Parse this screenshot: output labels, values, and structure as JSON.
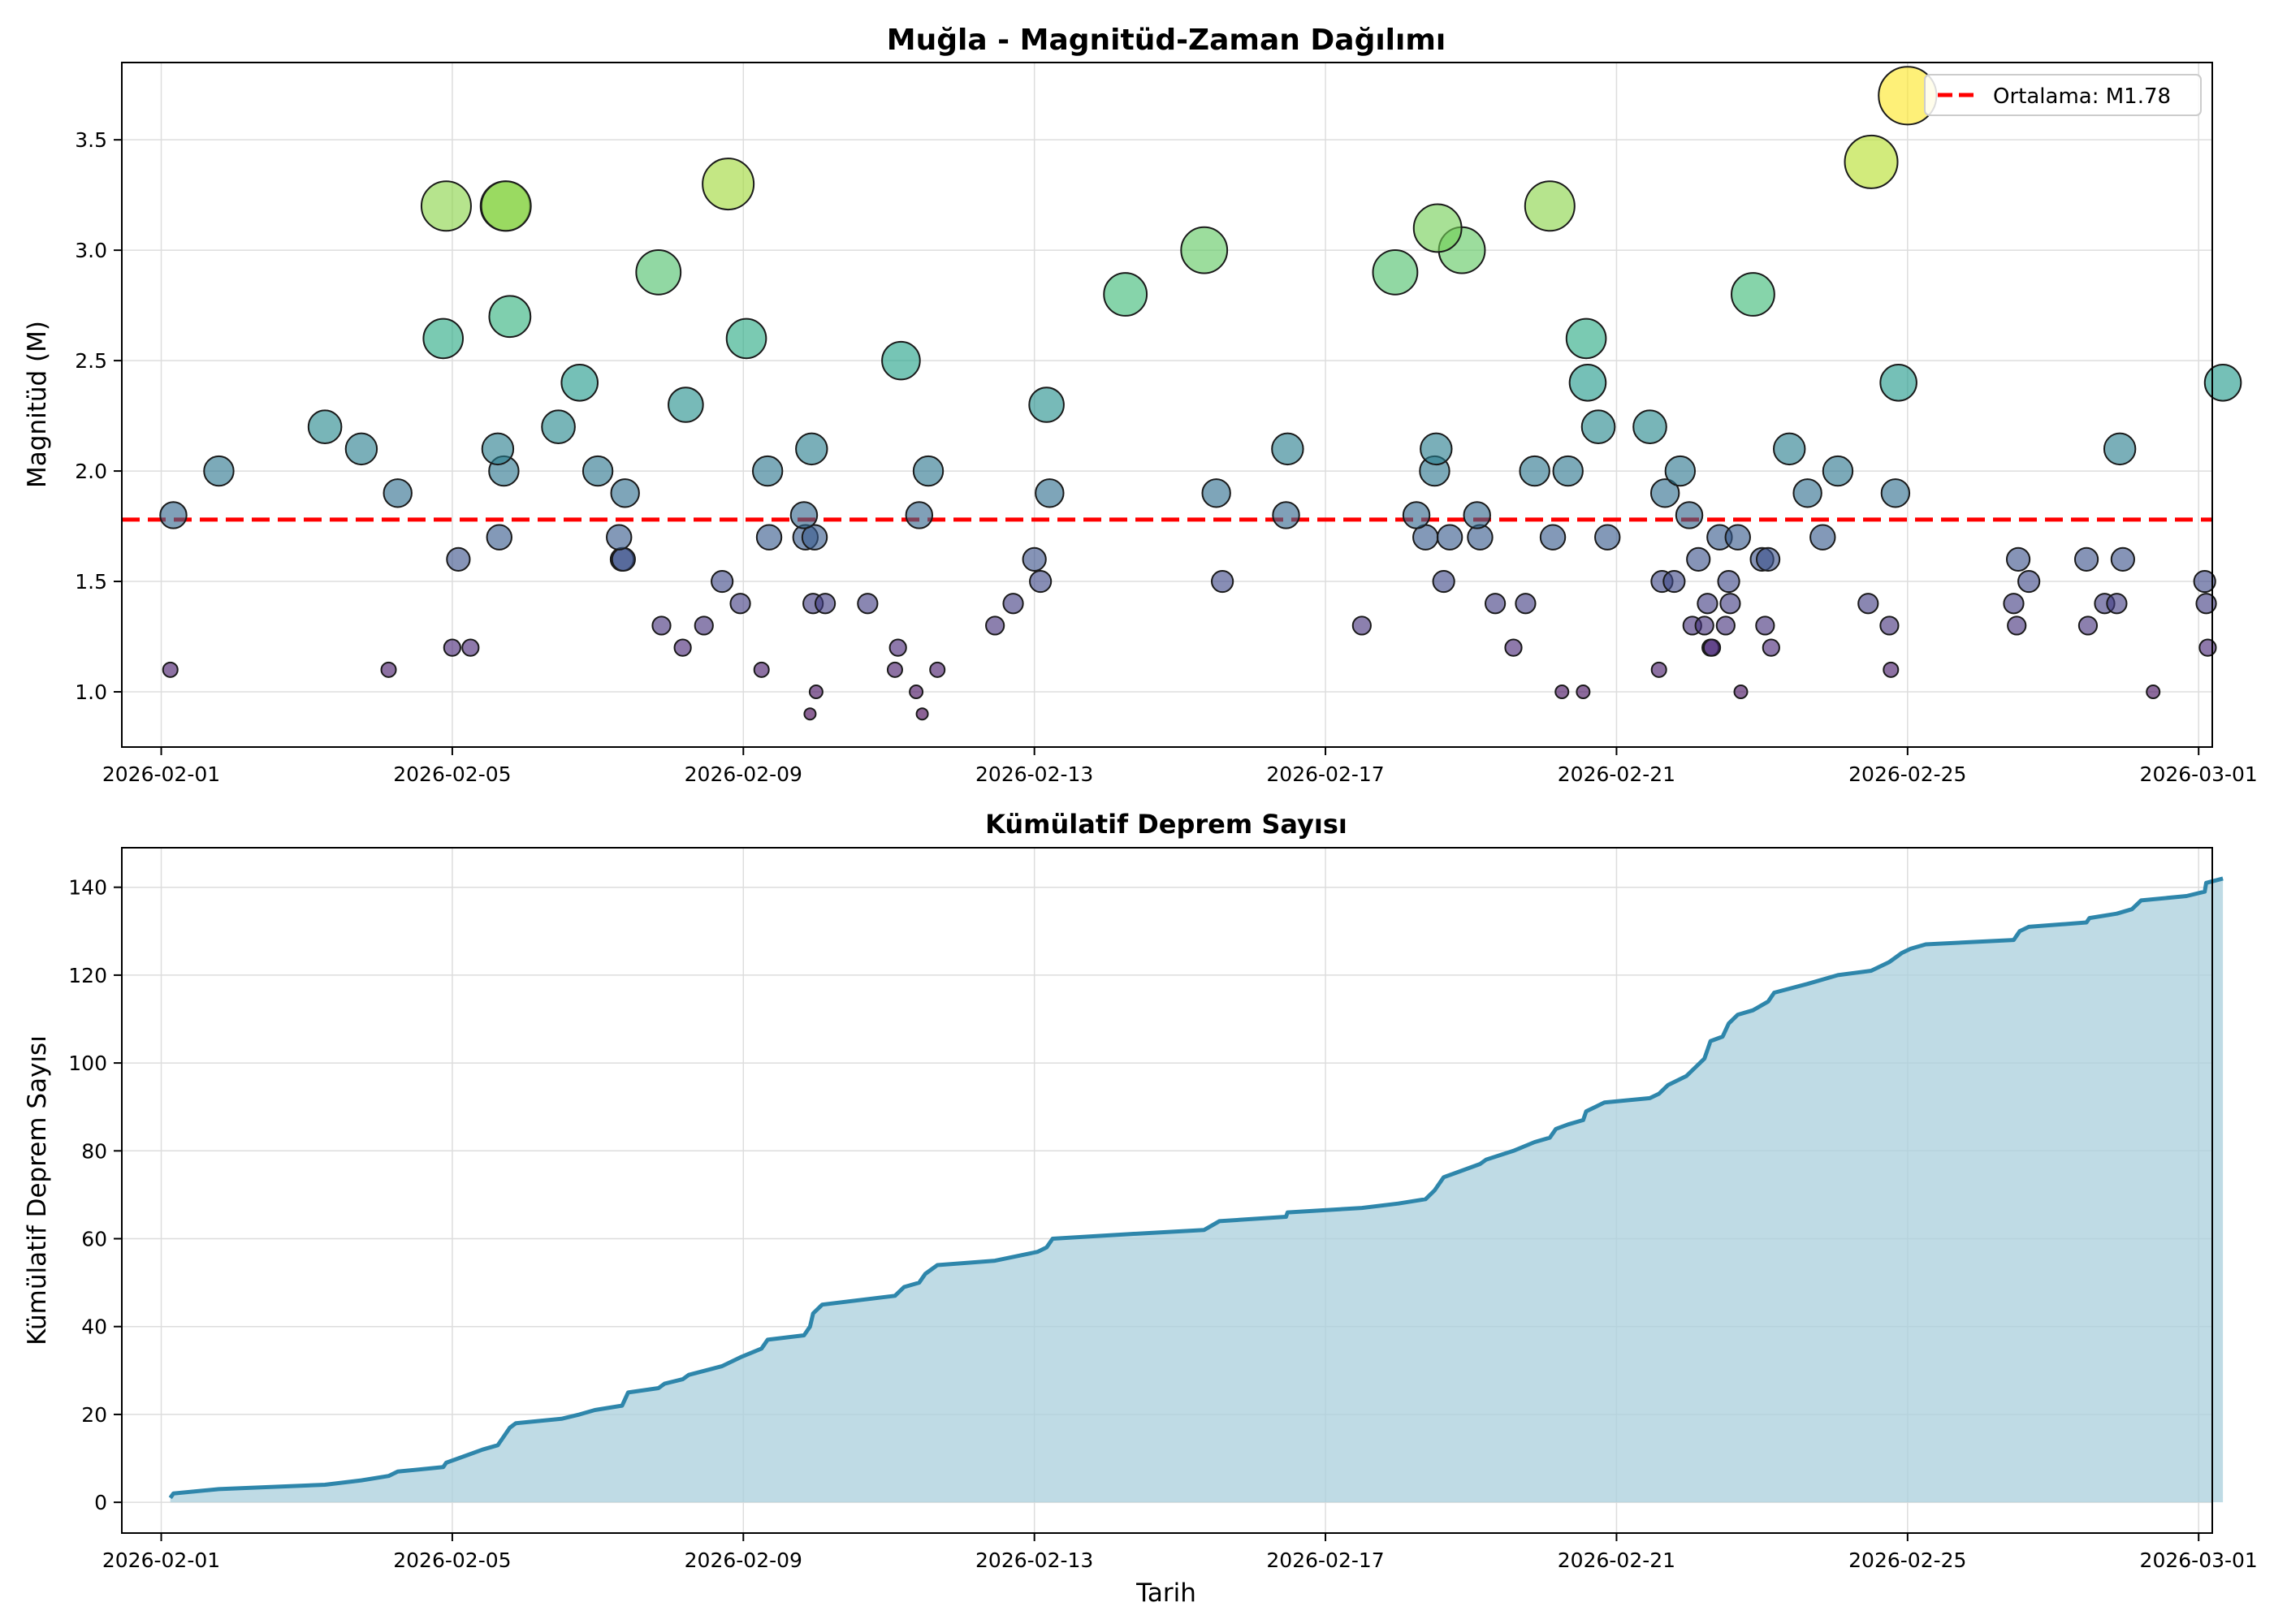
{
  "chart_data": [
    {
      "type": "scatter",
      "title": "Muğla - Magnitüd-Zaman Dağılımı",
      "xlabel": "",
      "ylabel": "Magnitüd (M)",
      "x_tick_labels": [
        "2026-02-01",
        "2026-02-05",
        "2026-02-09",
        "2026-02-13",
        "2026-02-17",
        "2026-02-21",
        "2026-02-25",
        "2026-03-01"
      ],
      "y_tick_labels": [
        "1.0",
        "1.5",
        "2.0",
        "2.5",
        "3.0",
        "3.5"
      ],
      "xlim": [
        "2026-01-31T11:00",
        "2026-03-01T04:30"
      ],
      "ylim": [
        0.75,
        3.85
      ],
      "grid": true,
      "legend_position": "top-right",
      "mean_line": {
        "value": 1.78,
        "label": "Ortalama: M1.78",
        "color": "#ff0000"
      },
      "color_scale": "viridis",
      "color_range": [
        0.9,
        3.7
      ],
      "points": [
        {
          "t": "2026-02-01T03:00",
          "m": 1.1
        },
        {
          "t": "2026-02-01T04:00",
          "m": 1.8
        },
        {
          "t": "2026-02-01T19:00",
          "m": 2.0
        },
        {
          "t": "2026-02-03T06:00",
          "m": 2.2
        },
        {
          "t": "2026-02-03T18:00",
          "m": 2.1
        },
        {
          "t": "2026-02-04T03:00",
          "m": 1.1
        },
        {
          "t": "2026-02-04T06:00",
          "m": 1.9
        },
        {
          "t": "2026-02-04T21:00",
          "m": 2.6
        },
        {
          "t": "2026-02-04T22:00",
          "m": 3.2
        },
        {
          "t": "2026-02-04T23:59",
          "m": 1.2
        },
        {
          "t": "2026-02-05T02:00",
          "m": 1.6
        },
        {
          "t": "2026-02-05T06:00",
          "m": 1.2
        },
        {
          "t": "2026-02-05T15:00",
          "m": 2.1
        },
        {
          "t": "2026-02-05T15:30",
          "m": 1.7
        },
        {
          "t": "2026-02-05T17:00",
          "m": 2.0
        },
        {
          "t": "2026-02-05T17:30",
          "m": 3.2
        },
        {
          "t": "2026-02-05T17:45",
          "m": 3.2
        },
        {
          "t": "2026-02-05T19:00",
          "m": 2.7
        },
        {
          "t": "2026-02-06T11:00",
          "m": 2.2
        },
        {
          "t": "2026-02-06T18:00",
          "m": 2.4
        },
        {
          "t": "2026-02-07T00:00",
          "m": 2.0
        },
        {
          "t": "2026-02-07T07:00",
          "m": 1.7
        },
        {
          "t": "2026-02-07T08:00",
          "m": 1.6
        },
        {
          "t": "2026-02-07T08:30",
          "m": 1.6
        },
        {
          "t": "2026-02-07T09:00",
          "m": 1.9
        },
        {
          "t": "2026-02-07T20:00",
          "m": 2.9
        },
        {
          "t": "2026-02-07T21:00",
          "m": 1.3
        },
        {
          "t": "2026-02-08T04:00",
          "m": 1.2
        },
        {
          "t": "2026-02-08T05:00",
          "m": 2.3
        },
        {
          "t": "2026-02-08T11:00",
          "m": 1.3
        },
        {
          "t": "2026-02-08T17:00",
          "m": 1.5
        },
        {
          "t": "2026-02-08T19:00",
          "m": 3.3
        },
        {
          "t": "2026-02-08T23:00",
          "m": 1.4
        },
        {
          "t": "2026-02-09T01:00",
          "m": 2.6
        },
        {
          "t": "2026-02-09T06:00",
          "m": 1.1
        },
        {
          "t": "2026-02-09T08:00",
          "m": 2.0
        },
        {
          "t": "2026-02-09T08:30",
          "m": 1.7
        },
        {
          "t": "2026-02-09T20:00",
          "m": 1.8
        },
        {
          "t": "2026-02-09T20:30",
          "m": 1.7
        },
        {
          "t": "2026-02-09T22:00",
          "m": 0.9
        },
        {
          "t": "2026-02-09T22:30",
          "m": 2.1
        },
        {
          "t": "2026-02-09T23:00",
          "m": 1.4
        },
        {
          "t": "2026-02-09T23:30",
          "m": 1.7
        },
        {
          "t": "2026-02-10T00:00",
          "m": 1.0
        },
        {
          "t": "2026-02-10T03:00",
          "m": 1.4
        },
        {
          "t": "2026-02-10T17:00",
          "m": 1.4
        },
        {
          "t": "2026-02-11T02:00",
          "m": 1.1
        },
        {
          "t": "2026-02-11T03:00",
          "m": 1.2
        },
        {
          "t": "2026-02-11T04:00",
          "m": 2.5
        },
        {
          "t": "2026-02-11T09:00",
          "m": 1.0
        },
        {
          "t": "2026-02-11T10:00",
          "m": 1.8
        },
        {
          "t": "2026-02-11T11:00",
          "m": 0.9
        },
        {
          "t": "2026-02-11T13:00",
          "m": 2.0
        },
        {
          "t": "2026-02-11T16:00",
          "m": 1.1
        },
        {
          "t": "2026-02-12T11:00",
          "m": 1.3
        },
        {
          "t": "2026-02-12T17:00",
          "m": 1.4
        },
        {
          "t": "2026-02-13T00:00",
          "m": 1.6
        },
        {
          "t": "2026-02-13T02:00",
          "m": 1.5
        },
        {
          "t": "2026-02-13T04:00",
          "m": 2.3
        },
        {
          "t": "2026-02-13T05:00",
          "m": 1.9
        },
        {
          "t": "2026-02-14T06:00",
          "m": 2.8
        },
        {
          "t": "2026-02-15T08:00",
          "m": 3.0
        },
        {
          "t": "2026-02-15T12:00",
          "m": 1.9
        },
        {
          "t": "2026-02-15T14:00",
          "m": 1.5
        },
        {
          "t": "2026-02-16T11:00",
          "m": 1.8
        },
        {
          "t": "2026-02-16T11:30",
          "m": 2.1
        },
        {
          "t": "2026-02-17T12:00",
          "m": 1.3
        },
        {
          "t": "2026-02-17T23:00",
          "m": 2.9
        },
        {
          "t": "2026-02-18T06:00",
          "m": 1.8
        },
        {
          "t": "2026-02-18T09:00",
          "m": 1.7
        },
        {
          "t": "2026-02-18T12:00",
          "m": 2.0
        },
        {
          "t": "2026-02-18T12:30",
          "m": 2.1
        },
        {
          "t": "2026-02-18T13:00",
          "m": 3.1
        },
        {
          "t": "2026-02-18T15:00",
          "m": 1.5
        },
        {
          "t": "2026-02-18T17:00",
          "m": 1.7
        },
        {
          "t": "2026-02-18T21:00",
          "m": 3.0
        },
        {
          "t": "2026-02-19T02:00",
          "m": 1.8
        },
        {
          "t": "2026-02-19T03:00",
          "m": 1.7
        },
        {
          "t": "2026-02-19T08:00",
          "m": 1.4
        },
        {
          "t": "2026-02-19T14:00",
          "m": 1.2
        },
        {
          "t": "2026-02-19T18:00",
          "m": 1.4
        },
        {
          "t": "2026-02-19T21:00",
          "m": 2.0
        },
        {
          "t": "2026-02-20T02:00",
          "m": 3.2
        },
        {
          "t": "2026-02-20T03:00",
          "m": 1.7
        },
        {
          "t": "2026-02-20T06:00",
          "m": 1.0
        },
        {
          "t": "2026-02-20T08:00",
          "m": 2.0
        },
        {
          "t": "2026-02-20T13:00",
          "m": 1.0
        },
        {
          "t": "2026-02-20T14:00",
          "m": 2.6
        },
        {
          "t": "2026-02-20T14:30",
          "m": 2.4
        },
        {
          "t": "2026-02-20T18:00",
          "m": 2.2
        },
        {
          "t": "2026-02-20T21:00",
          "m": 1.7
        },
        {
          "t": "2026-02-21T11:00",
          "m": 2.2
        },
        {
          "t": "2026-02-21T14:00",
          "m": 1.1
        },
        {
          "t": "2026-02-21T15:00",
          "m": 1.5
        },
        {
          "t": "2026-02-21T16:00",
          "m": 1.9
        },
        {
          "t": "2026-02-21T19:00",
          "m": 1.5
        },
        {
          "t": "2026-02-21T21:00",
          "m": 2.0
        },
        {
          "t": "2026-02-22T00:00",
          "m": 1.8
        },
        {
          "t": "2026-02-22T01:00",
          "m": 1.3
        },
        {
          "t": "2026-02-22T03:00",
          "m": 1.6
        },
        {
          "t": "2026-02-22T05:00",
          "m": 1.3
        },
        {
          "t": "2026-02-22T06:00",
          "m": 1.4
        },
        {
          "t": "2026-02-22T07:00",
          "m": 1.2
        },
        {
          "t": "2026-02-22T07:30",
          "m": 1.2
        },
        {
          "t": "2026-02-22T10:00",
          "m": 1.7
        },
        {
          "t": "2026-02-22T12:00",
          "m": 1.3
        },
        {
          "t": "2026-02-22T13:00",
          "m": 1.5
        },
        {
          "t": "2026-02-22T13:30",
          "m": 1.4
        },
        {
          "t": "2026-02-22T16:00",
          "m": 1.7
        },
        {
          "t": "2026-02-22T17:00",
          "m": 1.0
        },
        {
          "t": "2026-02-22T21:00",
          "m": 2.8
        },
        {
          "t": "2026-02-23T00:00",
          "m": 1.6
        },
        {
          "t": "2026-02-23T01:00",
          "m": 1.3
        },
        {
          "t": "2026-02-23T02:00",
          "m": 1.6
        },
        {
          "t": "2026-02-23T03:00",
          "m": 1.2
        },
        {
          "t": "2026-02-23T09:00",
          "m": 2.1
        },
        {
          "t": "2026-02-23T15:00",
          "m": 1.9
        },
        {
          "t": "2026-02-23T20:00",
          "m": 1.7
        },
        {
          "t": "2026-02-24T01:00",
          "m": 2.0
        },
        {
          "t": "2026-02-24T11:00",
          "m": 1.4
        },
        {
          "t": "2026-02-24T12:00",
          "m": 3.4
        },
        {
          "t": "2026-02-24T18:00",
          "m": 1.3
        },
        {
          "t": "2026-02-24T18:30",
          "m": 1.1
        },
        {
          "t": "2026-02-24T20:00",
          "m": 1.9
        },
        {
          "t": "2026-02-24T21:00",
          "m": 2.4
        },
        {
          "t": "2026-02-25T00:00",
          "m": 3.7
        },
        {
          "t": "2026-02-26T11:00",
          "m": 1.4
        },
        {
          "t": "2026-02-26T12:00",
          "m": 1.3
        },
        {
          "t": "2026-02-26T12:30",
          "m": 1.6
        },
        {
          "t": "2026-02-26T16:00",
          "m": 1.5
        },
        {
          "t": "2026-02-27T11:00",
          "m": 1.6
        },
        {
          "t": "2026-02-27T11:30",
          "m": 1.3
        },
        {
          "t": "2026-02-27T17:00",
          "m": 1.4
        },
        {
          "t": "2026-02-27T21:00",
          "m": 1.4
        },
        {
          "t": "2026-02-27T22:00",
          "m": 2.1
        },
        {
          "t": "2026-02-27T23:00",
          "m": 1.6
        },
        {
          "t": "2026-02-28T09:00",
          "m": 1.0
        },
        {
          "t": "2026-03-01T02:00",
          "m": 1.5
        },
        {
          "t": "2026-03-01T02:30",
          "m": 1.4
        },
        {
          "t": "2026-03-01T03:00",
          "m": 1.2
        },
        {
          "t": "2026-03-01T08:00",
          "m": 2.4
        }
      ]
    },
    {
      "type": "area",
      "title": "Kümülatif Deprem Sayısı",
      "xlabel": "Tarih",
      "ylabel": "Kümülatif Deprem Sayısı",
      "x_tick_labels": [
        "2026-02-01",
        "2026-02-05",
        "2026-02-09",
        "2026-02-13",
        "2026-02-17",
        "2026-02-21",
        "2026-02-25",
        "2026-03-01"
      ],
      "y_tick_labels": [
        "0",
        "20",
        "40",
        "60",
        "80",
        "100",
        "120",
        "140"
      ],
      "xlim": [
        "2026-01-31T11:00",
        "2026-03-01T04:30"
      ],
      "ylim": [
        -7,
        149
      ],
      "grid": true,
      "line_color": "#2e86ab",
      "fill_color": "#a9cfdc",
      "series": [
        {
          "t": "2026-02-01T03:00",
          "v": 1
        },
        {
          "t": "2026-02-01T04:00",
          "v": 2
        },
        {
          "t": "2026-02-01T19:00",
          "v": 3
        },
        {
          "t": "2026-02-03T06:00",
          "v": 4
        },
        {
          "t": "2026-02-03T18:00",
          "v": 5
        },
        {
          "t": "2026-02-04T03:00",
          "v": 6
        },
        {
          "t": "2026-02-04T06:00",
          "v": 7
        },
        {
          "t": "2026-02-04T21:00",
          "v": 8
        },
        {
          "t": "2026-02-04T22:00",
          "v": 9
        },
        {
          "t": "2026-02-05T02:00",
          "v": 10
        },
        {
          "t": "2026-02-05T06:00",
          "v": 11
        },
        {
          "t": "2026-02-05T10:00",
          "v": 12
        },
        {
          "t": "2026-02-05T15:00",
          "v": 13
        },
        {
          "t": "2026-02-05T17:00",
          "v": 15
        },
        {
          "t": "2026-02-05T19:00",
          "v": 17
        },
        {
          "t": "2026-02-05T21:00",
          "v": 18
        },
        {
          "t": "2026-02-06T12:00",
          "v": 19
        },
        {
          "t": "2026-02-06T18:00",
          "v": 20
        },
        {
          "t": "2026-02-06T23:00",
          "v": 21
        },
        {
          "t": "2026-02-07T08:00",
          "v": 22
        },
        {
          "t": "2026-02-07T10:00",
          "v": 25
        },
        {
          "t": "2026-02-07T20:00",
          "v": 26
        },
        {
          "t": "2026-02-07T22:00",
          "v": 27
        },
        {
          "t": "2026-02-08T04:00",
          "v": 28
        },
        {
          "t": "2026-02-08T06:00",
          "v": 29
        },
        {
          "t": "2026-02-08T17:00",
          "v": 31
        },
        {
          "t": "2026-02-08T23:00",
          "v": 33
        },
        {
          "t": "2026-02-09T06:00",
          "v": 35
        },
        {
          "t": "2026-02-09T08:00",
          "v": 37
        },
        {
          "t": "2026-02-09T20:00",
          "v": 38
        },
        {
          "t": "2026-02-09T22:00",
          "v": 40
        },
        {
          "t": "2026-02-09T23:00",
          "v": 43
        },
        {
          "t": "2026-02-10T02:00",
          "v": 45
        },
        {
          "t": "2026-02-11T02:00",
          "v": 47
        },
        {
          "t": "2026-02-11T05:00",
          "v": 49
        },
        {
          "t": "2026-02-11T10:00",
          "v": 50
        },
        {
          "t": "2026-02-11T12:00",
          "v": 52
        },
        {
          "t": "2026-02-11T16:00",
          "v": 54
        },
        {
          "t": "2026-02-12T11:00",
          "v": 55
        },
        {
          "t": "2026-02-13T01:00",
          "v": 57
        },
        {
          "t": "2026-02-13T04:00",
          "v": 58
        },
        {
          "t": "2026-02-13T06:00",
          "v": 60
        },
        {
          "t": "2026-02-14T06:00",
          "v": 61
        },
        {
          "t": "2026-02-15T08:00",
          "v": 62
        },
        {
          "t": "2026-02-15T13:00",
          "v": 64
        },
        {
          "t": "2026-02-16T11:00",
          "v": 65
        },
        {
          "t": "2026-02-16T11:30",
          "v": 66
        },
        {
          "t": "2026-02-17T12:00",
          "v": 67
        },
        {
          "t": "2026-02-18T00:00",
          "v": 68
        },
        {
          "t": "2026-02-18T09:00",
          "v": 69
        },
        {
          "t": "2026-02-18T12:00",
          "v": 71
        },
        {
          "t": "2026-02-18T15:00",
          "v": 74
        },
        {
          "t": "2026-02-18T19:00",
          "v": 75
        },
        {
          "t": "2026-02-19T03:00",
          "v": 77
        },
        {
          "t": "2026-02-19T05:00",
          "v": 78
        },
        {
          "t": "2026-02-19T14:00",
          "v": 80
        },
        {
          "t": "2026-02-19T21:00",
          "v": 82
        },
        {
          "t": "2026-02-20T02:00",
          "v": 83
        },
        {
          "t": "2026-02-20T04:00",
          "v": 85
        },
        {
          "t": "2026-02-20T08:00",
          "v": 86
        },
        {
          "t": "2026-02-20T13:00",
          "v": 87
        },
        {
          "t": "2026-02-20T14:00",
          "v": 89
        },
        {
          "t": "2026-02-20T17:00",
          "v": 90
        },
        {
          "t": "2026-02-20T20:00",
          "v": 91
        },
        {
          "t": "2026-02-21T11:00",
          "v": 92
        },
        {
          "t": "2026-02-21T14:00",
          "v": 93
        },
        {
          "t": "2026-02-21T17:00",
          "v": 95
        },
        {
          "t": "2026-02-21T23:00",
          "v": 97
        },
        {
          "t": "2026-02-22T02:00",
          "v": 99
        },
        {
          "t": "2026-02-22T05:00",
          "v": 101
        },
        {
          "t": "2026-02-22T07:00",
          "v": 105
        },
        {
          "t": "2026-02-22T11:00",
          "v": 106
        },
        {
          "t": "2026-02-22T13:00",
          "v": 109
        },
        {
          "t": "2026-02-22T16:00",
          "v": 111
        },
        {
          "t": "2026-02-22T21:00",
          "v": 112
        },
        {
          "t": "2026-02-23T02:00",
          "v": 114
        },
        {
          "t": "2026-02-23T04:00",
          "v": 116
        },
        {
          "t": "2026-02-23T15:00",
          "v": 118
        },
        {
          "t": "2026-02-24T01:00",
          "v": 120
        },
        {
          "t": "2026-02-24T12:00",
          "v": 121
        },
        {
          "t": "2026-02-24T18:00",
          "v": 123
        },
        {
          "t": "2026-02-24T20:00",
          "v": 124
        },
        {
          "t": "2026-02-24T22:00",
          "v": 125
        },
        {
          "t": "2026-02-25T01:00",
          "v": 126
        },
        {
          "t": "2026-02-25T06:00",
          "v": 127
        },
        {
          "t": "2026-02-26T11:00",
          "v": 128
        },
        {
          "t": "2026-02-26T13:00",
          "v": 130
        },
        {
          "t": "2026-02-26T16:00",
          "v": 131
        },
        {
          "t": "2026-02-27T11:00",
          "v": 132
        },
        {
          "t": "2026-02-27T12:00",
          "v": 133
        },
        {
          "t": "2026-02-27T21:00",
          "v": 134
        },
        {
          "t": "2026-02-28T02:00",
          "v": 135
        },
        {
          "t": "2026-02-28T05:00",
          "v": 137
        },
        {
          "t": "2026-02-28T20:00",
          "v": 138
        },
        {
          "t": "2026-03-01T02:00",
          "v": 139
        },
        {
          "t": "2026-03-01T02:30",
          "v": 141
        },
        {
          "t": "2026-03-01T08:00",
          "v": 142
        }
      ]
    }
  ]
}
